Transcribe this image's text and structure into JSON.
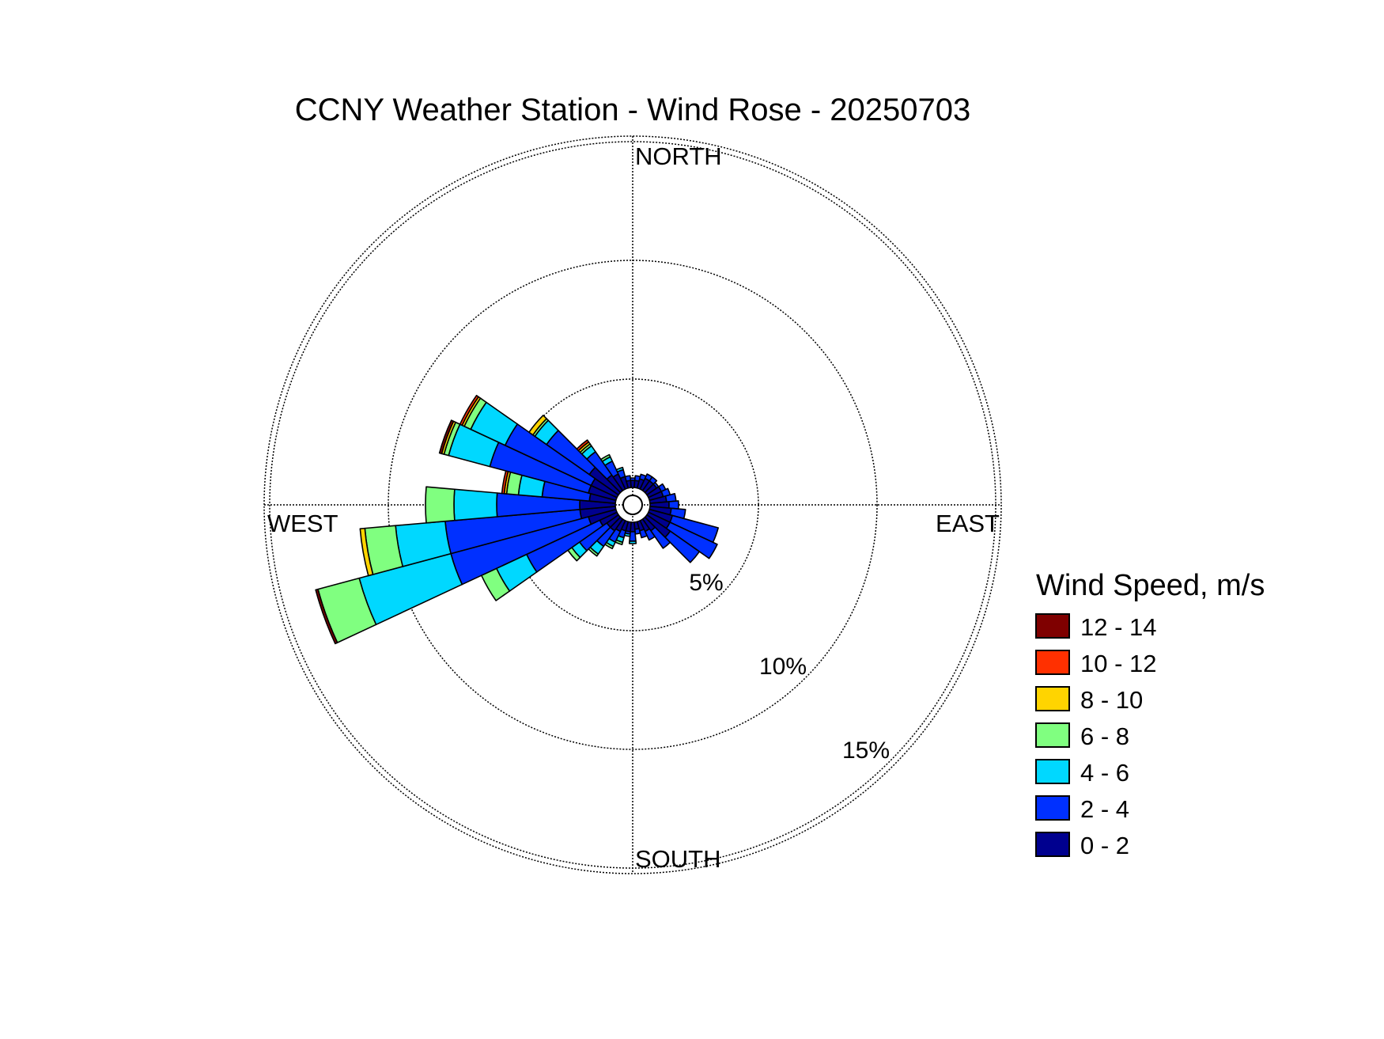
{
  "chart_data": {
    "type": "wind-rose",
    "title": "CCNY Weather Station - Wind Rose - 20250703",
    "direction_labels": {
      "north": "NORTH",
      "east": "EAST",
      "south": "SOUTH",
      "west": "WEST"
    },
    "ring_labels": [
      "5%",
      "10%",
      "15%"
    ],
    "rings": [
      5,
      10,
      15
    ],
    "r_max": 14,
    "center_offset": 0.6,
    "grid": true,
    "legend": {
      "title": "Wind Speed, m/s",
      "placement": "right",
      "entries": [
        {
          "label": "12 - 14",
          "color": "#7f0000"
        },
        {
          "label": "10 - 12",
          "color": "#ff3000"
        },
        {
          "label": "8 - 10",
          "color": "#ffd400"
        },
        {
          "label": "6 - 8",
          "color": "#80ff80"
        },
        {
          "label": "4 - 6",
          "color": "#00d8ff"
        },
        {
          "label": "2 - 4",
          "color": "#0030ff"
        },
        {
          "label": "0 - 2",
          "color": "#00008f"
        }
      ]
    },
    "bins_low_to_high": [
      "0 - 2",
      "2 - 4",
      "4 - 6",
      "6 - 8",
      "8 - 10",
      "10 - 12",
      "12 - 14"
    ],
    "sector_width_deg": 10,
    "sectors": [
      {
        "dir": 0,
        "values": [
          0.3,
          0.1,
          0,
          0,
          0,
          0,
          0
        ]
      },
      {
        "dir": 10,
        "values": [
          0.3,
          0.2,
          0,
          0,
          0,
          0,
          0
        ]
      },
      {
        "dir": 20,
        "values": [
          0.4,
          0.2,
          0,
          0,
          0,
          0,
          0
        ]
      },
      {
        "dir": 30,
        "values": [
          0.5,
          0.2,
          0,
          0,
          0,
          0,
          0
        ]
      },
      {
        "dir": 40,
        "values": [
          0.5,
          0.2,
          0,
          0,
          0,
          0,
          0
        ]
      },
      {
        "dir": 50,
        "values": [
          0.5,
          0.1,
          0,
          0,
          0,
          0,
          0
        ]
      },
      {
        "dir": 60,
        "values": [
          0.6,
          0.2,
          0,
          0,
          0,
          0,
          0
        ]
      },
      {
        "dir": 70,
        "values": [
          0.6,
          0.3,
          0,
          0,
          0,
          0,
          0
        ]
      },
      {
        "dir": 80,
        "values": [
          0.7,
          0.4,
          0,
          0,
          0,
          0,
          0
        ]
      },
      {
        "dir": 90,
        "values": [
          0.8,
          0.4,
          0,
          0,
          0,
          0,
          0
        ]
      },
      {
        "dir": 100,
        "values": [
          0.9,
          0.6,
          0,
          0,
          0,
          0,
          0
        ]
      },
      {
        "dir": 110,
        "values": [
          1.0,
          2.0,
          0,
          0,
          0,
          0,
          0
        ]
      },
      {
        "dir": 120,
        "values": [
          1.0,
          2.2,
          0,
          0,
          0,
          0,
          0
        ]
      },
      {
        "dir": 130,
        "values": [
          1.2,
          1.5,
          0,
          0,
          0,
          0,
          0
        ]
      },
      {
        "dir": 140,
        "values": [
          0.6,
          0.9,
          0,
          0,
          0,
          0,
          0
        ]
      },
      {
        "dir": 150,
        "values": [
          0.5,
          0.4,
          0,
          0,
          0,
          0,
          0
        ]
      },
      {
        "dir": 160,
        "values": [
          0.4,
          0.3,
          0,
          0,
          0,
          0,
          0
        ]
      },
      {
        "dir": 170,
        "values": [
          0.3,
          0.2,
          0,
          0,
          0,
          0,
          0
        ]
      },
      {
        "dir": 180,
        "values": [
          0.4,
          0.4,
          0.1,
          0,
          0,
          0,
          0
        ]
      },
      {
        "dir": 190,
        "values": [
          0.4,
          0.1,
          0.1,
          0,
          0,
          0,
          0
        ]
      },
      {
        "dir": 200,
        "values": [
          0.4,
          0.3,
          0.2,
          0.1,
          0,
          0,
          0
        ]
      },
      {
        "dir": 210,
        "values": [
          0.5,
          0.5,
          0.2,
          0.1,
          0,
          0,
          0
        ]
      },
      {
        "dir": 220,
        "values": [
          0.6,
          0.8,
          0.4,
          0.1,
          0,
          0,
          0
        ]
      },
      {
        "dir": 230,
        "values": [
          0.6,
          1.4,
          0.4,
          0.2,
          0,
          0,
          0
        ]
      },
      {
        "dir": 240,
        "values": [
          0.8,
          3.4,
          1.4,
          0.7,
          0,
          0,
          0
        ]
      },
      {
        "dir": 250,
        "values": [
          1.2,
          6.0,
          4.0,
          1.8,
          0,
          0,
          0.1
        ]
      },
      {
        "dir": 260,
        "values": [
          1.5,
          5.7,
          2.1,
          1.3,
          0.2,
          0,
          0
        ]
      },
      {
        "dir": 270,
        "values": [
          1.5,
          3.5,
          1.8,
          1.2,
          0,
          0,
          0
        ]
      },
      {
        "dir": 280,
        "values": [
          1.1,
          2.0,
          1.0,
          0.5,
          0.1,
          0.1,
          0
        ]
      },
      {
        "dir": 290,
        "values": [
          1.2,
          4.3,
          1.8,
          0.2,
          0.1,
          0,
          0.1
        ]
      },
      {
        "dir": 300,
        "values": [
          1.2,
          4.0,
          1.6,
          0.3,
          0.1,
          0.1,
          0
        ]
      },
      {
        "dir": 310,
        "values": [
          1.5,
          2.2,
          0.6,
          0.1,
          0.2,
          0,
          0
        ]
      },
      {
        "dir": 320,
        "values": [
          0.8,
          1.2,
          0.3,
          0.1,
          0.1,
          0.1,
          0
        ]
      },
      {
        "dir": 330,
        "values": [
          0.7,
          0.6,
          0.2,
          0.1,
          0,
          0,
          0
        ]
      },
      {
        "dir": 340,
        "values": [
          0.5,
          0.3,
          0.1,
          0,
          0,
          0,
          0
        ]
      },
      {
        "dir": 350,
        "values": [
          0.3,
          0.2,
          0,
          0,
          0,
          0,
          0
        ]
      }
    ]
  }
}
